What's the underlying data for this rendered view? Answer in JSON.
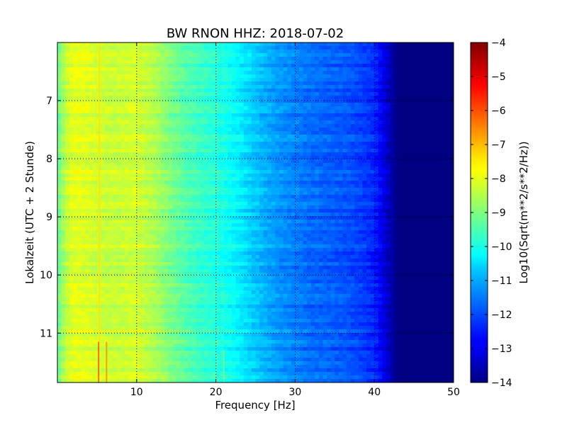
{
  "chart_data": {
    "type": "heatmap",
    "title": "BW RNON HHZ: 2018-07-02",
    "xlabel": "Frequency [Hz]",
    "ylabel": "Lokalzeit (UTC + 2 Stunde)",
    "xlim": [
      0,
      50
    ],
    "ylim": [
      6.0,
      11.85
    ],
    "y_inverted": true,
    "grid": true,
    "x_ticks": [
      10,
      20,
      30,
      40,
      50
    ],
    "x_tick_labels": [
      "10",
      "20",
      "30",
      "40",
      "50"
    ],
    "y_ticks": [
      7,
      8,
      9,
      10,
      11
    ],
    "y_tick_labels": [
      "7",
      "8",
      "9",
      "10",
      "11"
    ],
    "colorbar": {
      "label": "Log10(Sqrt(m**2/s**2/Hz))",
      "colormap": "jet",
      "range": [
        -14,
        -4
      ],
      "ticks": [
        -4,
        -5,
        -6,
        -7,
        -8,
        -9,
        -10,
        -11,
        -12,
        -13,
        -14
      ],
      "tick_labels": [
        "−4",
        "−5",
        "−6",
        "−7",
        "−8",
        "−9",
        "−10",
        "−11",
        "−12",
        "−13",
        "−14"
      ]
    },
    "spectrum_profile": {
      "frequency_hz": [
        0,
        1,
        2,
        4,
        6,
        8,
        10,
        12,
        14,
        16,
        18,
        20,
        22,
        24,
        26,
        28,
        30,
        32,
        34,
        36,
        38,
        40,
        41,
        42,
        43,
        44,
        46,
        50
      ],
      "log10_amplitude": [
        -9.3,
        -8.4,
        -8.0,
        -8.1,
        -8.3,
        -8.3,
        -8.2,
        -8.5,
        -9.0,
        -9.4,
        -9.7,
        -9.9,
        -10.2,
        -10.6,
        -11.0,
        -11.3,
        -11.5,
        -11.7,
        -11.8,
        -11.9,
        -12.1,
        -12.4,
        -12.9,
        -13.5,
        -14.0,
        -14.0,
        -14.0,
        -14.0
      ]
    },
    "features": [
      {
        "type": "narrow-band line",
        "frequency_hz": 5.2,
        "time_range": [
          11.15,
          11.85
        ],
        "log10_amplitude": -6.3
      },
      {
        "type": "narrow-band line",
        "frequency_hz": 6.2,
        "time_range": [
          11.15,
          11.85
        ],
        "log10_amplitude": -6.8
      },
      {
        "type": "narrow-band line",
        "frequency_hz": 5.3,
        "time_range": [
          6.0,
          11.15
        ],
        "log10_amplitude": -7.5
      },
      {
        "type": "narrow-band line",
        "frequency_hz": 21.0,
        "time_range": [
          11.3,
          11.85
        ],
        "log10_amplitude": -9.2
      }
    ]
  }
}
